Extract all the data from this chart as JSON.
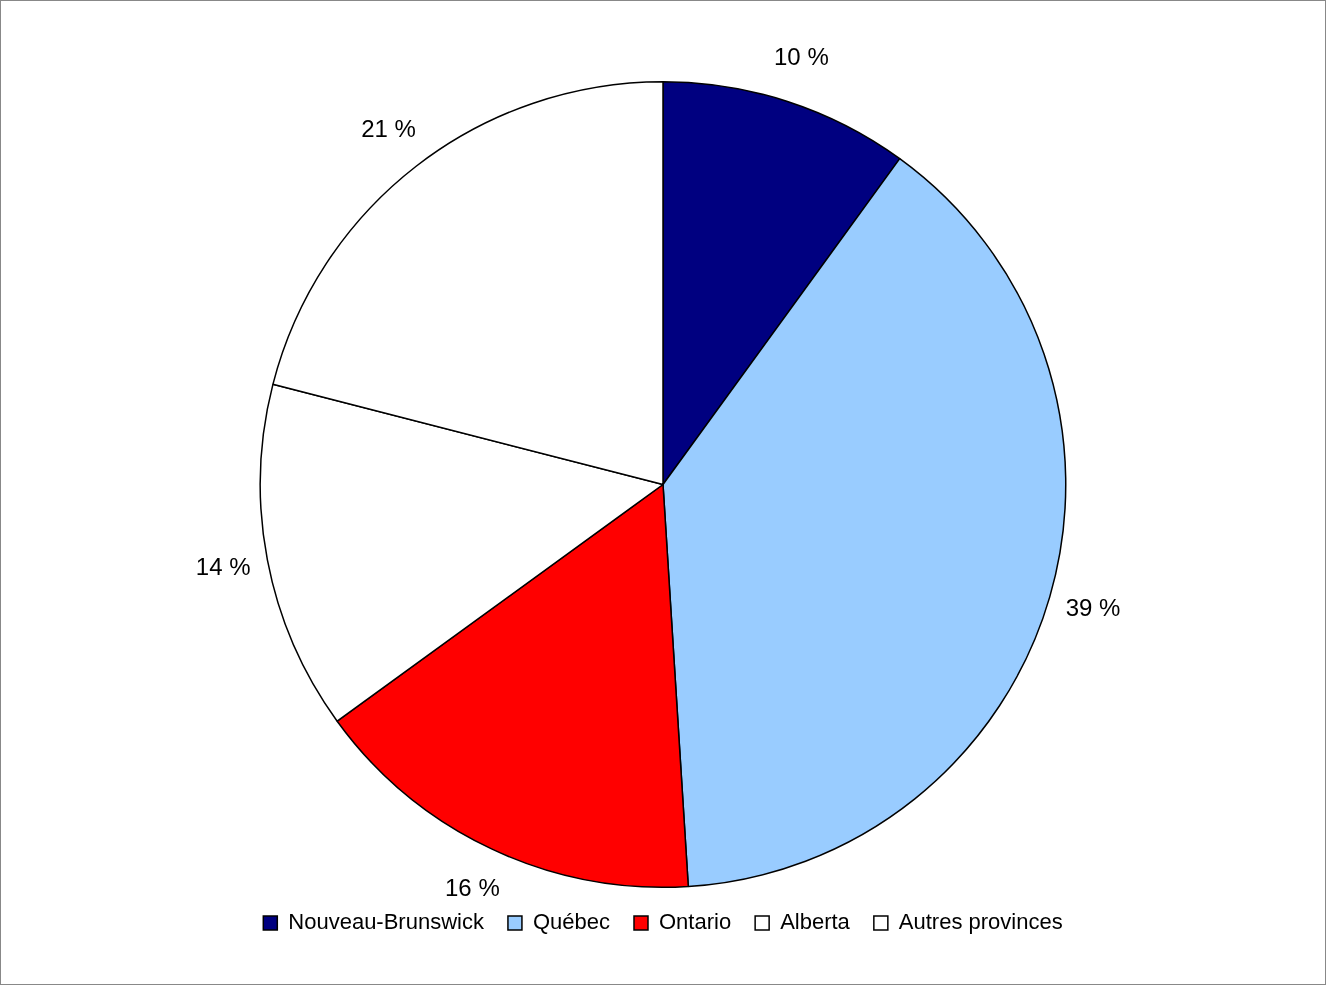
{
  "chart_data": {
    "type": "pie",
    "categories": [
      "Nouveau-Brunswick",
      "Québec",
      "Ontario",
      "Alberta",
      "Autres provinces"
    ],
    "values": [
      10,
      39,
      16,
      14,
      21
    ],
    "colors": [
      "#000080",
      "#99ccff",
      "#ff0000",
      "#ffffff",
      "#ffffff"
    ],
    "value_labels": [
      "10 %",
      "39 %",
      "16 %",
      "14 %",
      "21 %"
    ],
    "legend": "bottom"
  }
}
